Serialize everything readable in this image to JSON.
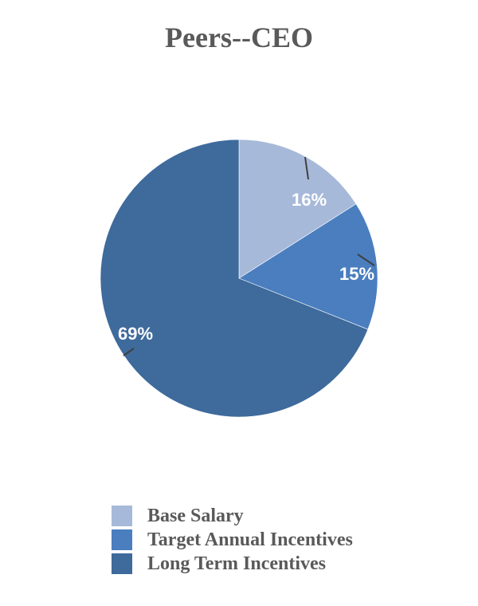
{
  "chart_data": {
    "type": "pie",
    "title": "Peers--CEO",
    "categories": [
      "Base Salary",
      "Target Annual Incentives",
      "Long Term Incentives"
    ],
    "values": [
      16,
      15,
      69
    ],
    "labels": [
      "16%",
      "15%",
      "69%"
    ],
    "colors": [
      "#a7b9d9",
      "#4a7ebf",
      "#3e6a9c"
    ],
    "legend_position": "bottom"
  },
  "title": "Peers--CEO",
  "legend": [
    {
      "label": "Base Salary",
      "color": "#a7b9d9"
    },
    {
      "label": "Target Annual Incentives",
      "color": "#4a7ebf"
    },
    {
      "label": "Long Term Incentives",
      "color": "#3e6a9c"
    }
  ]
}
